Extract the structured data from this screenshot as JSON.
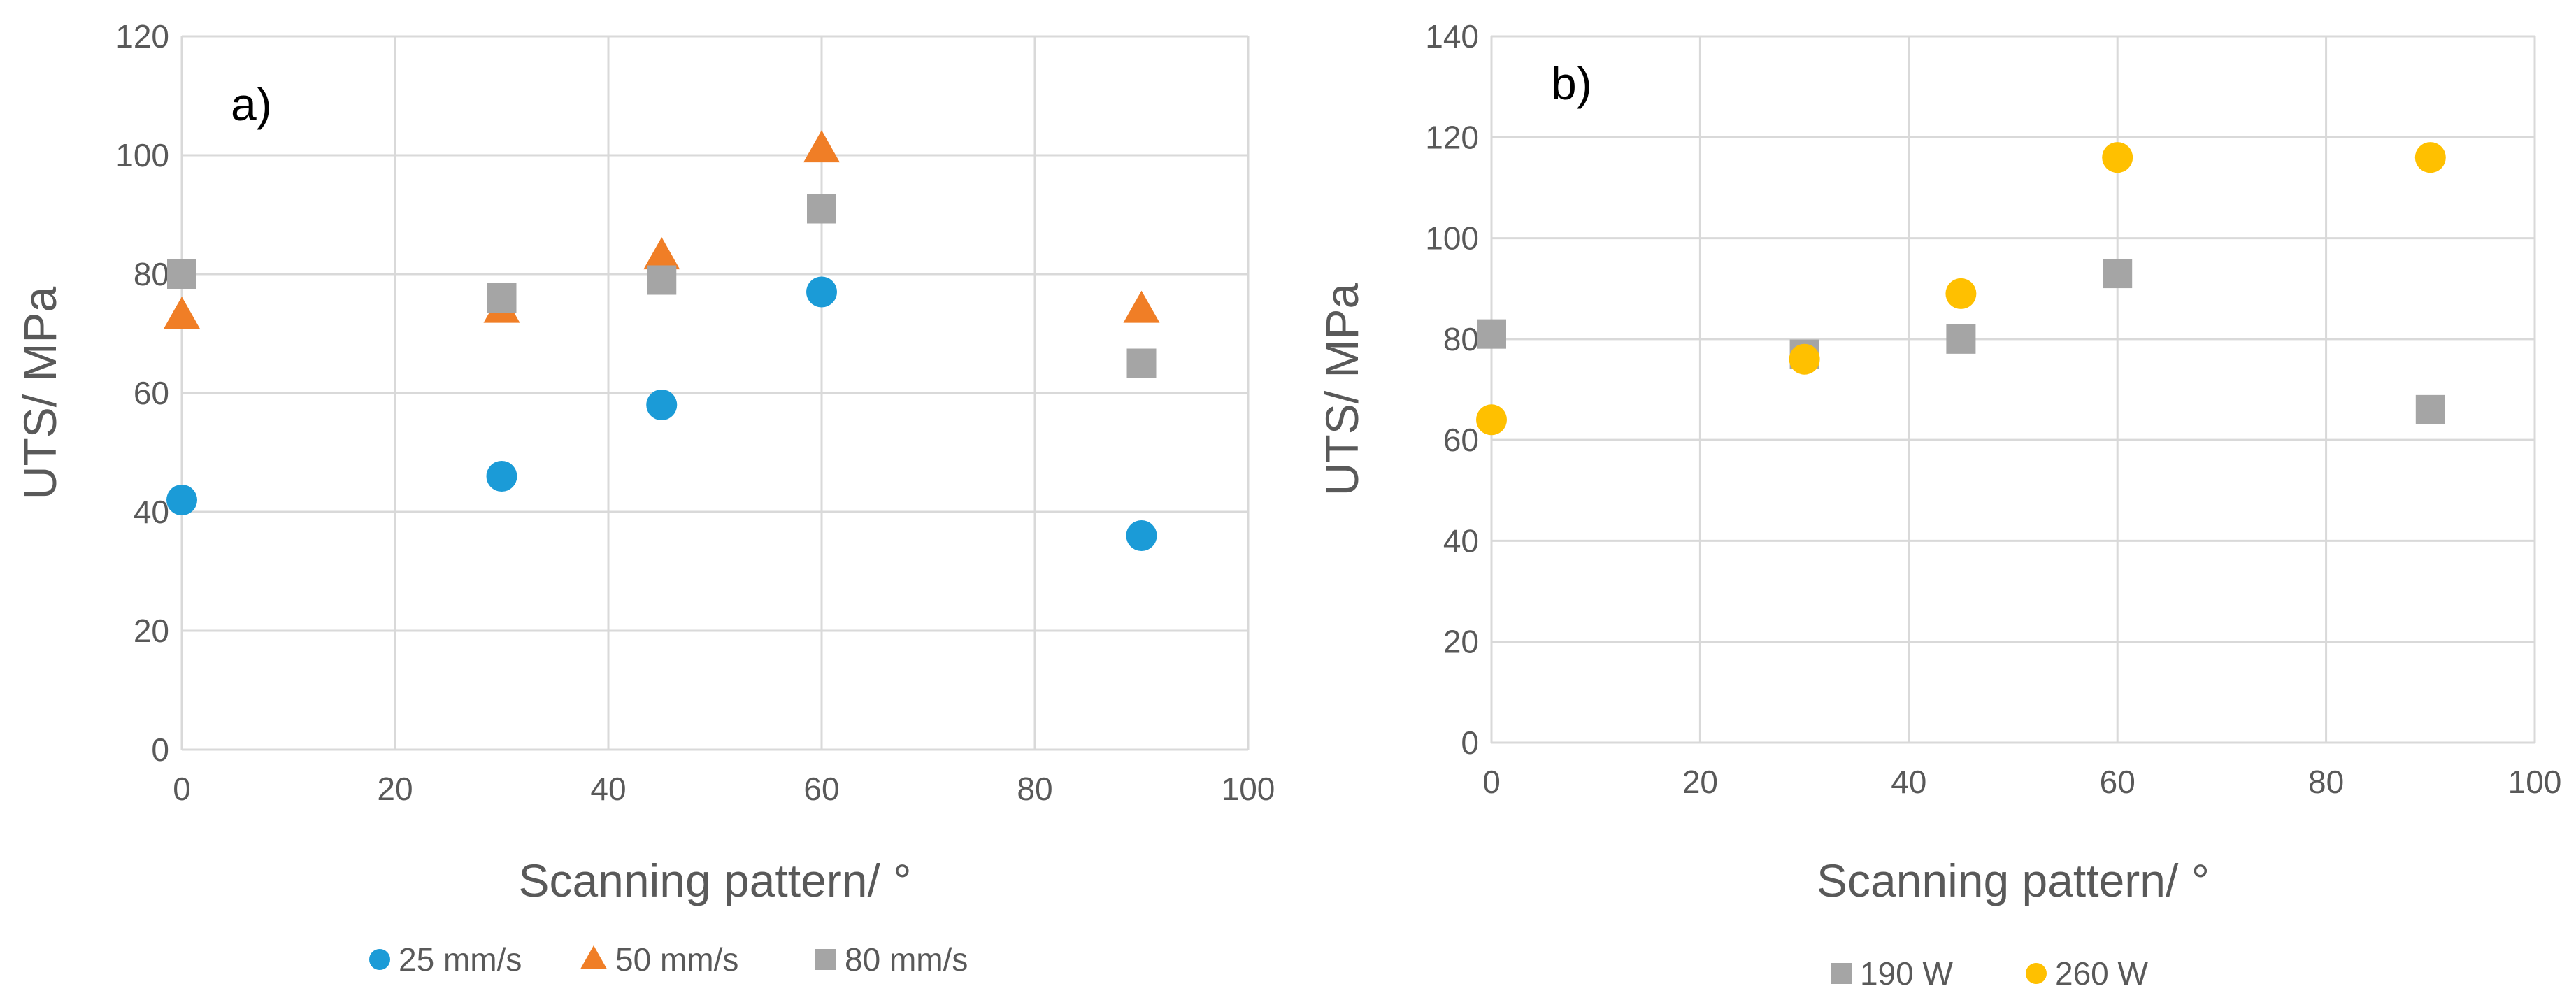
{
  "chart_data": [
    {
      "type": "scatter",
      "panel_label": "a)",
      "title": "",
      "xlabel": "Scanning pattern/ °",
      "ylabel": "UTS/ MPa",
      "xlim": [
        0,
        100
      ],
      "ylim": [
        0,
        120
      ],
      "xticks": [
        "0",
        "20",
        "40",
        "60",
        "80",
        "100"
      ],
      "yticks": [
        "0",
        "20",
        "40",
        "60",
        "80",
        "100",
        "120"
      ],
      "grid": true,
      "legend_position": "bottom",
      "series": [
        {
          "name": "25 mm/s",
          "marker": "circle",
          "color": "#1B9BD7",
          "x": [
            0,
            30,
            45,
            60,
            90
          ],
          "y": [
            42,
            46,
            58,
            77,
            36
          ]
        },
        {
          "name": "50 mm/s",
          "marker": "triangle",
          "color": "#F07E26",
          "x": [
            0,
            30,
            45,
            60,
            90
          ],
          "y": [
            73,
            74,
            83,
            101,
            74
          ]
        },
        {
          "name": "80 mm/s",
          "marker": "square",
          "color": "#A5A5A5",
          "x": [
            0,
            30,
            45,
            60,
            90
          ],
          "y": [
            80,
            76,
            79,
            91,
            65
          ]
        }
      ]
    },
    {
      "type": "scatter",
      "panel_label": "b)",
      "title": "",
      "xlabel": "Scanning pattern/ °",
      "ylabel": "UTS/ MPa",
      "xlim": [
        0,
        100
      ],
      "ylim": [
        0,
        140
      ],
      "xticks": [
        "0",
        "20",
        "40",
        "60",
        "80",
        "100"
      ],
      "yticks": [
        "0",
        "20",
        "40",
        "60",
        "80",
        "100",
        "120",
        "140"
      ],
      "grid": true,
      "legend_position": "bottom",
      "series": [
        {
          "name": "190 W",
          "marker": "square",
          "color": "#A5A5A5",
          "x": [
            0,
            30,
            45,
            60,
            90
          ],
          "y": [
            81,
            77,
            80,
            93,
            66
          ]
        },
        {
          "name": "260 W",
          "marker": "circle",
          "color": "#FFC000",
          "x": [
            0,
            30,
            45,
            60,
            90
          ],
          "y": [
            64,
            76,
            89,
            116,
            116
          ]
        }
      ]
    }
  ]
}
